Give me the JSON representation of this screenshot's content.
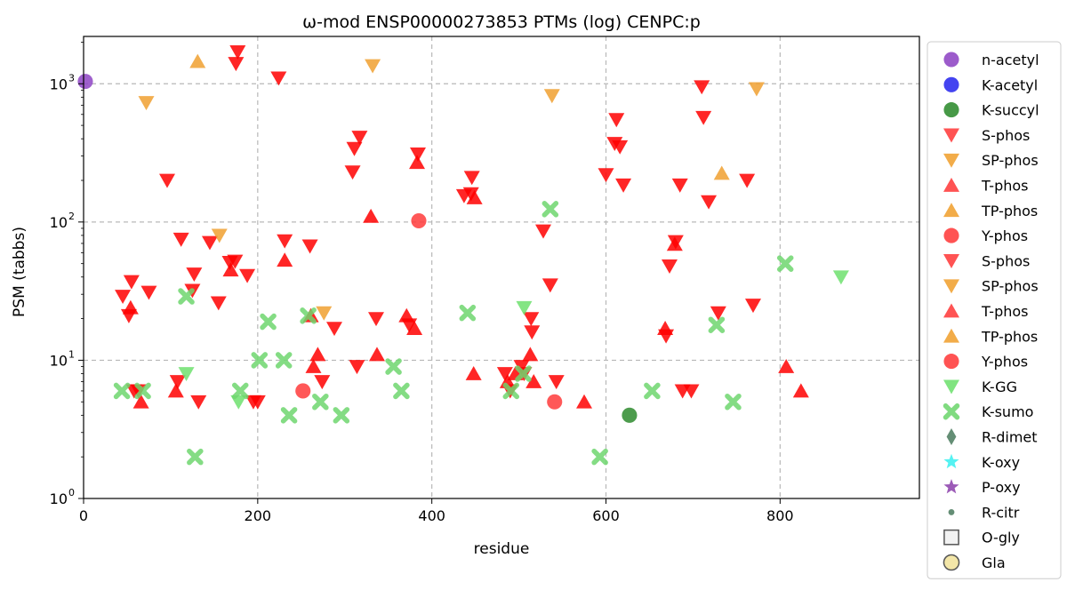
{
  "chart_data": {
    "type": "scatter",
    "title": "ω-mod ENSP00000273853 PTMs (log) CENPC:p",
    "xlabel": "residue",
    "ylabel": "PSM (tabbs)",
    "xlim": [
      0,
      960
    ],
    "ylim": [
      1,
      2200
    ],
    "y_scale": "log",
    "grid": true,
    "legend_position": "outside-right",
    "x_ticks": [
      {
        "value": 0,
        "label": "0"
      },
      {
        "value": 200,
        "label": "200"
      },
      {
        "value": 400,
        "label": "400"
      },
      {
        "value": 600,
        "label": "600"
      },
      {
        "value": 800,
        "label": "800"
      }
    ],
    "y_ticks": [
      {
        "value": 1,
        "label": "10",
        "exp": "0"
      },
      {
        "value": 10,
        "label": "10",
        "exp": "1"
      },
      {
        "value": 100,
        "label": "10",
        "exp": "2"
      },
      {
        "value": 1000,
        "label": "10",
        "exp": "3"
      }
    ],
    "series": [
      {
        "name": "n-acetyl",
        "marker": "circle",
        "color": "#8e44c4",
        "points": [
          [
            2,
            1040
          ]
        ]
      },
      {
        "name": "K-acetyl",
        "marker": "circle",
        "color": "#2a2aee",
        "points": []
      },
      {
        "name": "K-succyl",
        "marker": "circle",
        "color": "#2e8b2e",
        "points": [
          [
            627,
            4
          ]
        ]
      },
      {
        "name": "S-phos",
        "marker": "triangle-down",
        "color": "#ff0000",
        "points": [
          [
            45,
            29
          ],
          [
            52,
            21
          ],
          [
            55,
            37
          ],
          [
            58,
            6
          ],
          [
            63,
            6
          ],
          [
            75,
            31
          ],
          [
            96,
            200
          ],
          [
            108,
            7
          ],
          [
            112,
            75
          ],
          [
            125,
            32
          ],
          [
            127,
            42
          ],
          [
            132,
            5
          ],
          [
            145,
            71
          ],
          [
            155,
            26
          ],
          [
            168,
            51
          ],
          [
            174,
            52
          ],
          [
            175,
            1400
          ],
          [
            177,
            1700
          ],
          [
            188,
            41
          ],
          [
            195,
            5
          ],
          [
            200,
            5
          ],
          [
            224,
            1100
          ],
          [
            231,
            73
          ],
          [
            260,
            67
          ],
          [
            274,
            7
          ],
          [
            288,
            17
          ],
          [
            309,
            230
          ],
          [
            311,
            340
          ],
          [
            314,
            9
          ],
          [
            317,
            410
          ],
          [
            336,
            20
          ],
          [
            374,
            18
          ],
          [
            384,
            310
          ],
          [
            437,
            155
          ],
          [
            445,
            160
          ],
          [
            446,
            210
          ],
          [
            484,
            8
          ],
          [
            490,
            6
          ],
          [
            503,
            9
          ],
          [
            506,
            8
          ],
          [
            514,
            20
          ],
          [
            515,
            16
          ],
          [
            528,
            86
          ],
          [
            536,
            35
          ],
          [
            543,
            7
          ],
          [
            600,
            220
          ],
          [
            610,
            370
          ],
          [
            612,
            550
          ],
          [
            616,
            350
          ],
          [
            620,
            185
          ],
          [
            669,
            15
          ],
          [
            673,
            48
          ],
          [
            680,
            72
          ],
          [
            685,
            185
          ],
          [
            688,
            6
          ],
          [
            698,
            6
          ],
          [
            710,
            950
          ],
          [
            712,
            570
          ],
          [
            718,
            140
          ],
          [
            729,
            22
          ],
          [
            762,
            200
          ],
          [
            769,
            25
          ]
        ]
      },
      {
        "name": "SP-phos",
        "marker": "triangle-down",
        "color": "#f0a030",
        "points": [
          [
            72,
            730
          ],
          [
            156,
            80
          ],
          [
            332,
            1350
          ],
          [
            538,
            820
          ],
          [
            773,
            920
          ],
          [
            276,
            22
          ]
        ]
      },
      {
        "name": "T-phos",
        "marker": "triangle-up",
        "color": "#ff0000",
        "points": [
          [
            54,
            24
          ],
          [
            66,
            5
          ],
          [
            106,
            6
          ],
          [
            169,
            45
          ],
          [
            231,
            53
          ],
          [
            261,
            21
          ],
          [
            264,
            9
          ],
          [
            269,
            11
          ],
          [
            330,
            110
          ],
          [
            337,
            11
          ],
          [
            371,
            21
          ],
          [
            380,
            17
          ],
          [
            383,
            270
          ],
          [
            449,
            150
          ],
          [
            448,
            8
          ],
          [
            487,
            7
          ],
          [
            496,
            8
          ],
          [
            513,
            11
          ],
          [
            517,
            7
          ],
          [
            575,
            5
          ],
          [
            668,
            17
          ],
          [
            679,
            69
          ],
          [
            807,
            9
          ],
          [
            824,
            6
          ]
        ]
      },
      {
        "name": "TP-phos",
        "marker": "triangle-up",
        "color": "#f0a030",
        "points": [
          [
            131,
            1450
          ],
          [
            733,
            225
          ]
        ]
      },
      {
        "name": "Y-phos",
        "marker": "circle",
        "color": "#ff3b3b",
        "points": [
          [
            385,
            102
          ],
          [
            252,
            6
          ],
          [
            541,
            5
          ]
        ]
      },
      {
        "name": "K-GG",
        "marker": "triangle-down",
        "color": "#6ee06e",
        "points": [
          [
            118,
            8
          ],
          [
            178,
            5
          ],
          [
            506,
            24
          ],
          [
            870,
            40
          ]
        ]
      },
      {
        "name": "K-sumo",
        "marker": "x",
        "color": "#6ed66e",
        "points": [
          [
            44,
            6
          ],
          [
            68,
            6
          ],
          [
            118,
            29
          ],
          [
            128,
            2
          ],
          [
            180,
            6
          ],
          [
            202,
            10
          ],
          [
            212,
            19
          ],
          [
            230,
            10
          ],
          [
            236,
            4
          ],
          [
            258,
            21
          ],
          [
            272,
            5
          ],
          [
            296,
            4
          ],
          [
            356,
            9
          ],
          [
            365,
            6
          ],
          [
            441,
            22
          ],
          [
            491,
            6
          ],
          [
            505,
            8
          ],
          [
            536,
            124
          ],
          [
            593,
            2
          ],
          [
            653,
            6
          ],
          [
            727,
            18
          ],
          [
            746,
            5
          ],
          [
            806,
            50
          ]
        ]
      },
      {
        "name": "R-dimet",
        "marker": "diamond",
        "color": "#4e7e62",
        "points": []
      },
      {
        "name": "K-oxy",
        "marker": "star",
        "color": "#3ef0f0",
        "points": []
      },
      {
        "name": "P-oxy",
        "marker": "star",
        "color": "#8e44ad",
        "points": []
      },
      {
        "name": "R-citr",
        "marker": "small-circle",
        "color": "#4e7e62",
        "points": []
      },
      {
        "name": "O-gly",
        "marker": "square-open",
        "color": "#555555",
        "points": []
      },
      {
        "name": "Gla",
        "marker": "circle-open",
        "color": "#555555",
        "points": []
      }
    ],
    "legend_entries": [
      {
        "label": "n-acetyl",
        "marker": "circle",
        "color": "#8e44c4"
      },
      {
        "label": "K-acetyl",
        "marker": "circle",
        "color": "#2a2aee"
      },
      {
        "label": "K-succyl",
        "marker": "circle",
        "color": "#2e8b2e"
      },
      {
        "label": "S-phos",
        "marker": "triangle-down",
        "color": "#ff3b3b"
      },
      {
        "label": "SP-phos",
        "marker": "triangle-down",
        "color": "#f0a030"
      },
      {
        "label": "T-phos",
        "marker": "triangle-up",
        "color": "#ff3b3b"
      },
      {
        "label": "TP-phos",
        "marker": "triangle-up",
        "color": "#f0a030"
      },
      {
        "label": "Y-phos",
        "marker": "circle",
        "color": "#ff3b3b"
      },
      {
        "label": "S-phos",
        "marker": "triangle-down",
        "color": "#ff3b3b"
      },
      {
        "label": "SP-phos",
        "marker": "triangle-down",
        "color": "#f0a030"
      },
      {
        "label": "T-phos",
        "marker": "triangle-up",
        "color": "#ff3b3b"
      },
      {
        "label": "TP-phos",
        "marker": "triangle-up",
        "color": "#f0a030"
      },
      {
        "label": "Y-phos",
        "marker": "circle",
        "color": "#ff3b3b"
      },
      {
        "label": "K-GG",
        "marker": "triangle-down",
        "color": "#6ee06e"
      },
      {
        "label": "K-sumo",
        "marker": "x",
        "color": "#6ed66e"
      },
      {
        "label": "R-dimet",
        "marker": "diamond",
        "color": "#4e7e62"
      },
      {
        "label": "K-oxy",
        "marker": "star",
        "color": "#3ef0f0"
      },
      {
        "label": "P-oxy",
        "marker": "star",
        "color": "#8e44ad"
      },
      {
        "label": "R-citr",
        "marker": "small-circle",
        "color": "#4e7e62"
      },
      {
        "label": "O-gly",
        "marker": "square-open",
        "color": "#555555"
      },
      {
        "label": "Gla",
        "marker": "circle-open",
        "color": "#555555"
      }
    ]
  }
}
